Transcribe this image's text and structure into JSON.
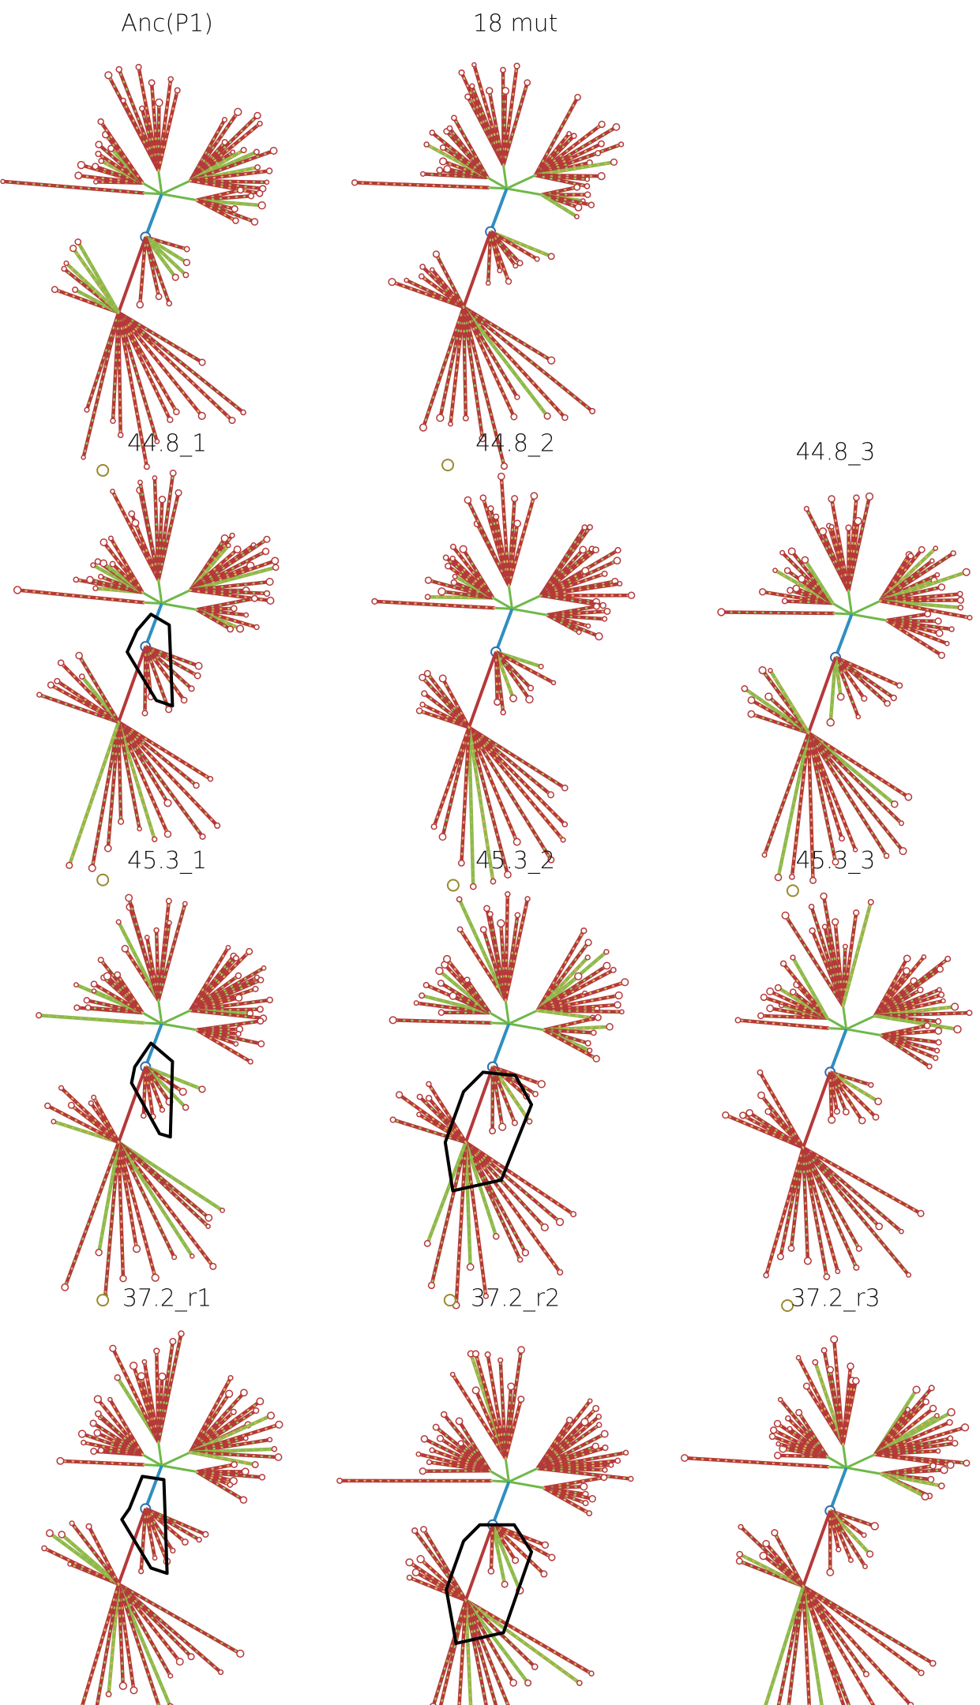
{
  "panels": [
    {
      "label": "Anc(P1)"
    },
    {
      "label": "18 mut"
    },
    {
      "label": "44.8_1"
    },
    {
      "label": "44.8_2"
    },
    {
      "label": "44.8_3"
    },
    {
      "label": "45.3_1"
    },
    {
      "label": "45.3_2"
    },
    {
      "label": "45.3_3"
    },
    {
      "label": "37.2_r1"
    },
    {
      "label": "37.2_r2"
    },
    {
      "label": "37.2_r3"
    }
  ]
}
